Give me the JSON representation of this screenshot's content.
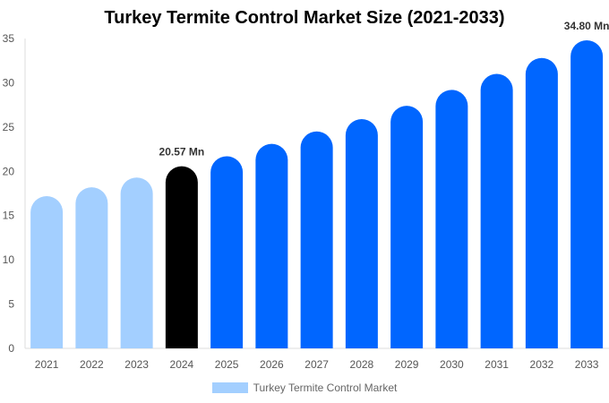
{
  "chart_data": {
    "type": "bar",
    "title": "Turkey Termite Control Market Size (2021-2033)",
    "categories": [
      "2021",
      "2022",
      "2023",
      "2024",
      "2025",
      "2026",
      "2027",
      "2028",
      "2029",
      "2030",
      "2031",
      "2032",
      "2033"
    ],
    "series": [
      {
        "name": "Turkey Termite Control Market",
        "values": [
          17.2,
          18.2,
          19.3,
          20.57,
          21.7,
          23.1,
          24.5,
          25.9,
          27.4,
          29.2,
          31.0,
          32.8,
          34.8
        ]
      }
    ],
    "ylim": [
      0,
      35
    ],
    "yticks": [
      0,
      5,
      10,
      15,
      20,
      25,
      30,
      35
    ],
    "data_labels": {
      "3": "20.57 Mn",
      "12": "34.80 Mn"
    },
    "colors": {
      "historical": "#a3cfff",
      "base_year": "#000000",
      "forecast": "#0066ff"
    },
    "legend_position": "bottom",
    "grid": false
  }
}
